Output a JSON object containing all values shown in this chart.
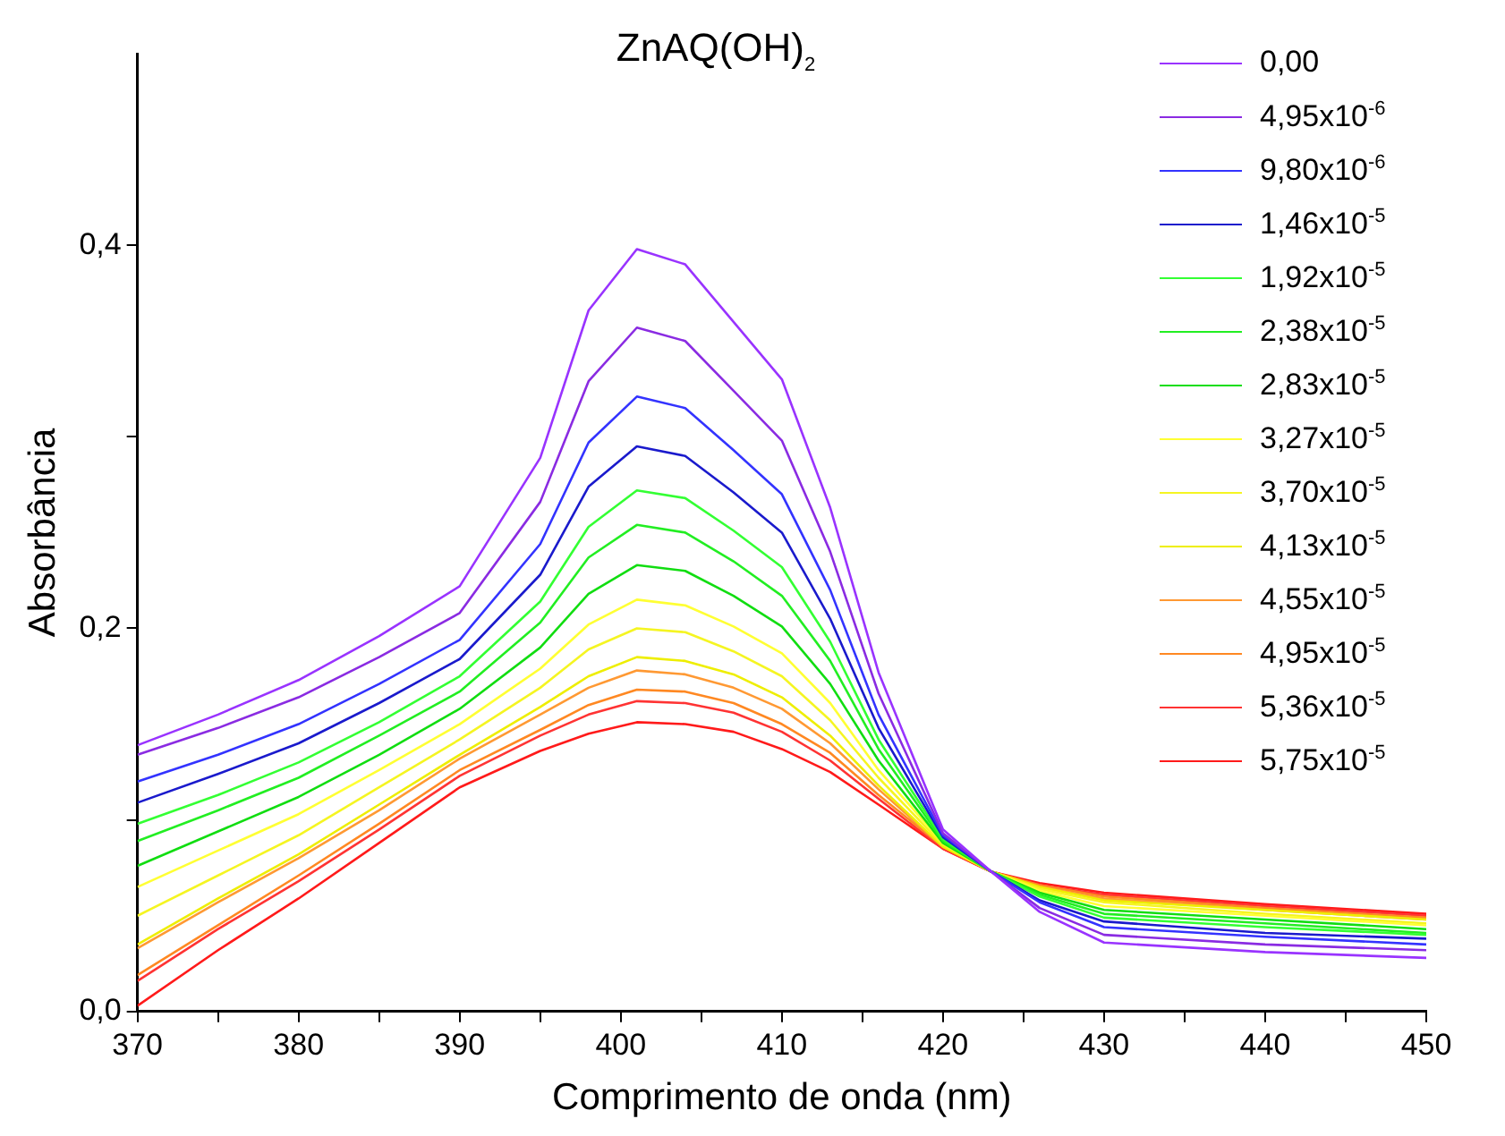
{
  "chart_data": {
    "type": "line",
    "title": "ZnAQ(OH)$_{2}$",
    "xlabel": "Comprimento de onda (nm)",
    "ylabel": "Absorbância",
    "x": [
      370,
      375,
      380,
      385,
      390,
      395,
      398,
      401,
      404,
      407,
      410,
      413,
      416,
      420,
      423,
      426,
      430,
      440,
      450
    ],
    "xlim": [
      370,
      450
    ],
    "xticks": [
      370,
      {
        "value": 375,
        "label": null
      },
      380,
      {
        "value": 385,
        "label": null
      },
      390,
      {
        "value": 395,
        "label": null
      },
      400,
      {
        "value": 405,
        "label": null
      },
      410,
      {
        "value": 415,
        "label": null
      },
      420,
      {
        "value": 425,
        "label": null
      },
      430,
      {
        "value": 435,
        "label": null
      },
      440,
      {
        "value": 445,
        "label": null
      },
      450
    ],
    "ylim": [
      0,
      0.5
    ],
    "yticks": [
      {
        "value": 0,
        "label": "0,0"
      },
      {
        "value": 0.1,
        "label": null
      },
      {
        "value": 0.2,
        "label": "0,2"
      },
      {
        "value": 0.3,
        "label": null
      },
      {
        "value": 0.4,
        "label": "0,4"
      }
    ],
    "legend": "top right",
    "marker": "none",
    "line_style": "solid",
    "series": [
      {
        "name": "0,00",
        "color": "#9933ff",
        "values": [
          0.139,
          0.155,
          0.173,
          0.196,
          0.222,
          0.289,
          0.366,
          0.398,
          0.39,
          0.36,
          0.33,
          0.263,
          0.177,
          0.095,
          0.073,
          0.052,
          0.036,
          0.031,
          0.028
        ]
      },
      {
        "name": "4,95x10$^{-6}$",
        "color": "#8a2be2",
        "values": [
          0.134,
          0.148,
          0.164,
          0.185,
          0.208,
          0.266,
          0.329,
          0.357,
          0.35,
          0.324,
          0.298,
          0.24,
          0.166,
          0.093,
          0.073,
          0.054,
          0.04,
          0.035,
          0.032
        ]
      },
      {
        "name": "9,80x10$^{-6}$",
        "color": "#3333ff",
        "values": [
          0.12,
          0.134,
          0.15,
          0.171,
          0.194,
          0.244,
          0.297,
          0.321,
          0.315,
          0.293,
          0.27,
          0.22,
          0.155,
          0.092,
          0.073,
          0.057,
          0.044,
          0.039,
          0.035
        ]
      },
      {
        "name": "1,46x10$^{-5}$",
        "color": "#1a1acc",
        "values": [
          0.109,
          0.124,
          0.14,
          0.161,
          0.184,
          0.228,
          0.274,
          0.295,
          0.29,
          0.271,
          0.25,
          0.205,
          0.148,
          0.091,
          0.073,
          0.058,
          0.047,
          0.041,
          0.038
        ]
      },
      {
        "name": "1,92x10$^{-5}$",
        "color": "#33ff33",
        "values": [
          0.098,
          0.113,
          0.13,
          0.151,
          0.175,
          0.214,
          0.253,
          0.272,
          0.268,
          0.251,
          0.232,
          0.193,
          0.142,
          0.09,
          0.073,
          0.06,
          0.049,
          0.044,
          0.04
        ]
      },
      {
        "name": "2,38x10$^{-5}$",
        "color": "#22ee22",
        "values": [
          0.089,
          0.105,
          0.122,
          0.144,
          0.167,
          0.203,
          0.237,
          0.254,
          0.25,
          0.235,
          0.217,
          0.183,
          0.137,
          0.089,
          0.073,
          0.061,
          0.051,
          0.046,
          0.041
        ]
      },
      {
        "name": "2,83x10$^{-5}$",
        "color": "#11dd11",
        "values": [
          0.076,
          0.094,
          0.112,
          0.134,
          0.158,
          0.19,
          0.218,
          0.233,
          0.23,
          0.217,
          0.201,
          0.171,
          0.131,
          0.088,
          0.073,
          0.062,
          0.053,
          0.048,
          0.043
        ]
      },
      {
        "name": "3,27x10$^{-5}$",
        "color": "#ffff33",
        "values": [
          0.065,
          0.084,
          0.103,
          0.126,
          0.15,
          0.179,
          0.202,
          0.215,
          0.212,
          0.201,
          0.187,
          0.161,
          0.126,
          0.088,
          0.073,
          0.063,
          0.055,
          0.05,
          0.045
        ]
      },
      {
        "name": "3,70x10$^{-5}$",
        "color": "#f5f522",
        "values": [
          0.05,
          0.071,
          0.092,
          0.117,
          0.142,
          0.169,
          0.189,
          0.2,
          0.198,
          0.188,
          0.175,
          0.152,
          0.122,
          0.087,
          0.073,
          0.064,
          0.057,
          0.051,
          0.046
        ]
      },
      {
        "name": "4,13x10$^{-5}$",
        "color": "#eeee00",
        "values": [
          0.035,
          0.059,
          0.082,
          0.108,
          0.134,
          0.159,
          0.175,
          0.185,
          0.183,
          0.176,
          0.164,
          0.144,
          0.118,
          0.086,
          0.073,
          0.065,
          0.058,
          0.053,
          0.048
        ]
      },
      {
        "name": "4,55x10$^{-5}$",
        "color": "#ff9933",
        "values": [
          0.033,
          0.057,
          0.08,
          0.105,
          0.132,
          0.155,
          0.169,
          0.178,
          0.176,
          0.169,
          0.158,
          0.14,
          0.116,
          0.086,
          0.073,
          0.065,
          0.059,
          0.053,
          0.048
        ]
      },
      {
        "name": "4,95x10$^{-5}$",
        "color": "#ff8822",
        "values": [
          0.019,
          0.045,
          0.071,
          0.098,
          0.126,
          0.147,
          0.16,
          0.168,
          0.167,
          0.161,
          0.15,
          0.135,
          0.113,
          0.086,
          0.073,
          0.066,
          0.06,
          0.054,
          0.049
        ]
      },
      {
        "name": "5,36x10$^{-5}$",
        "color": "#ff3333",
        "values": [
          0.016,
          0.043,
          0.068,
          0.095,
          0.123,
          0.144,
          0.155,
          0.162,
          0.161,
          0.156,
          0.146,
          0.131,
          0.111,
          0.085,
          0.073,
          0.066,
          0.061,
          0.055,
          0.05
        ]
      },
      {
        "name": "5,75x10$^{-5}$",
        "color": "#ff1a1a",
        "values": [
          0.003,
          0.032,
          0.059,
          0.088,
          0.117,
          0.136,
          0.145,
          0.151,
          0.15,
          0.146,
          0.137,
          0.125,
          0.108,
          0.085,
          0.073,
          0.067,
          0.062,
          0.056,
          0.051
        ]
      }
    ]
  }
}
